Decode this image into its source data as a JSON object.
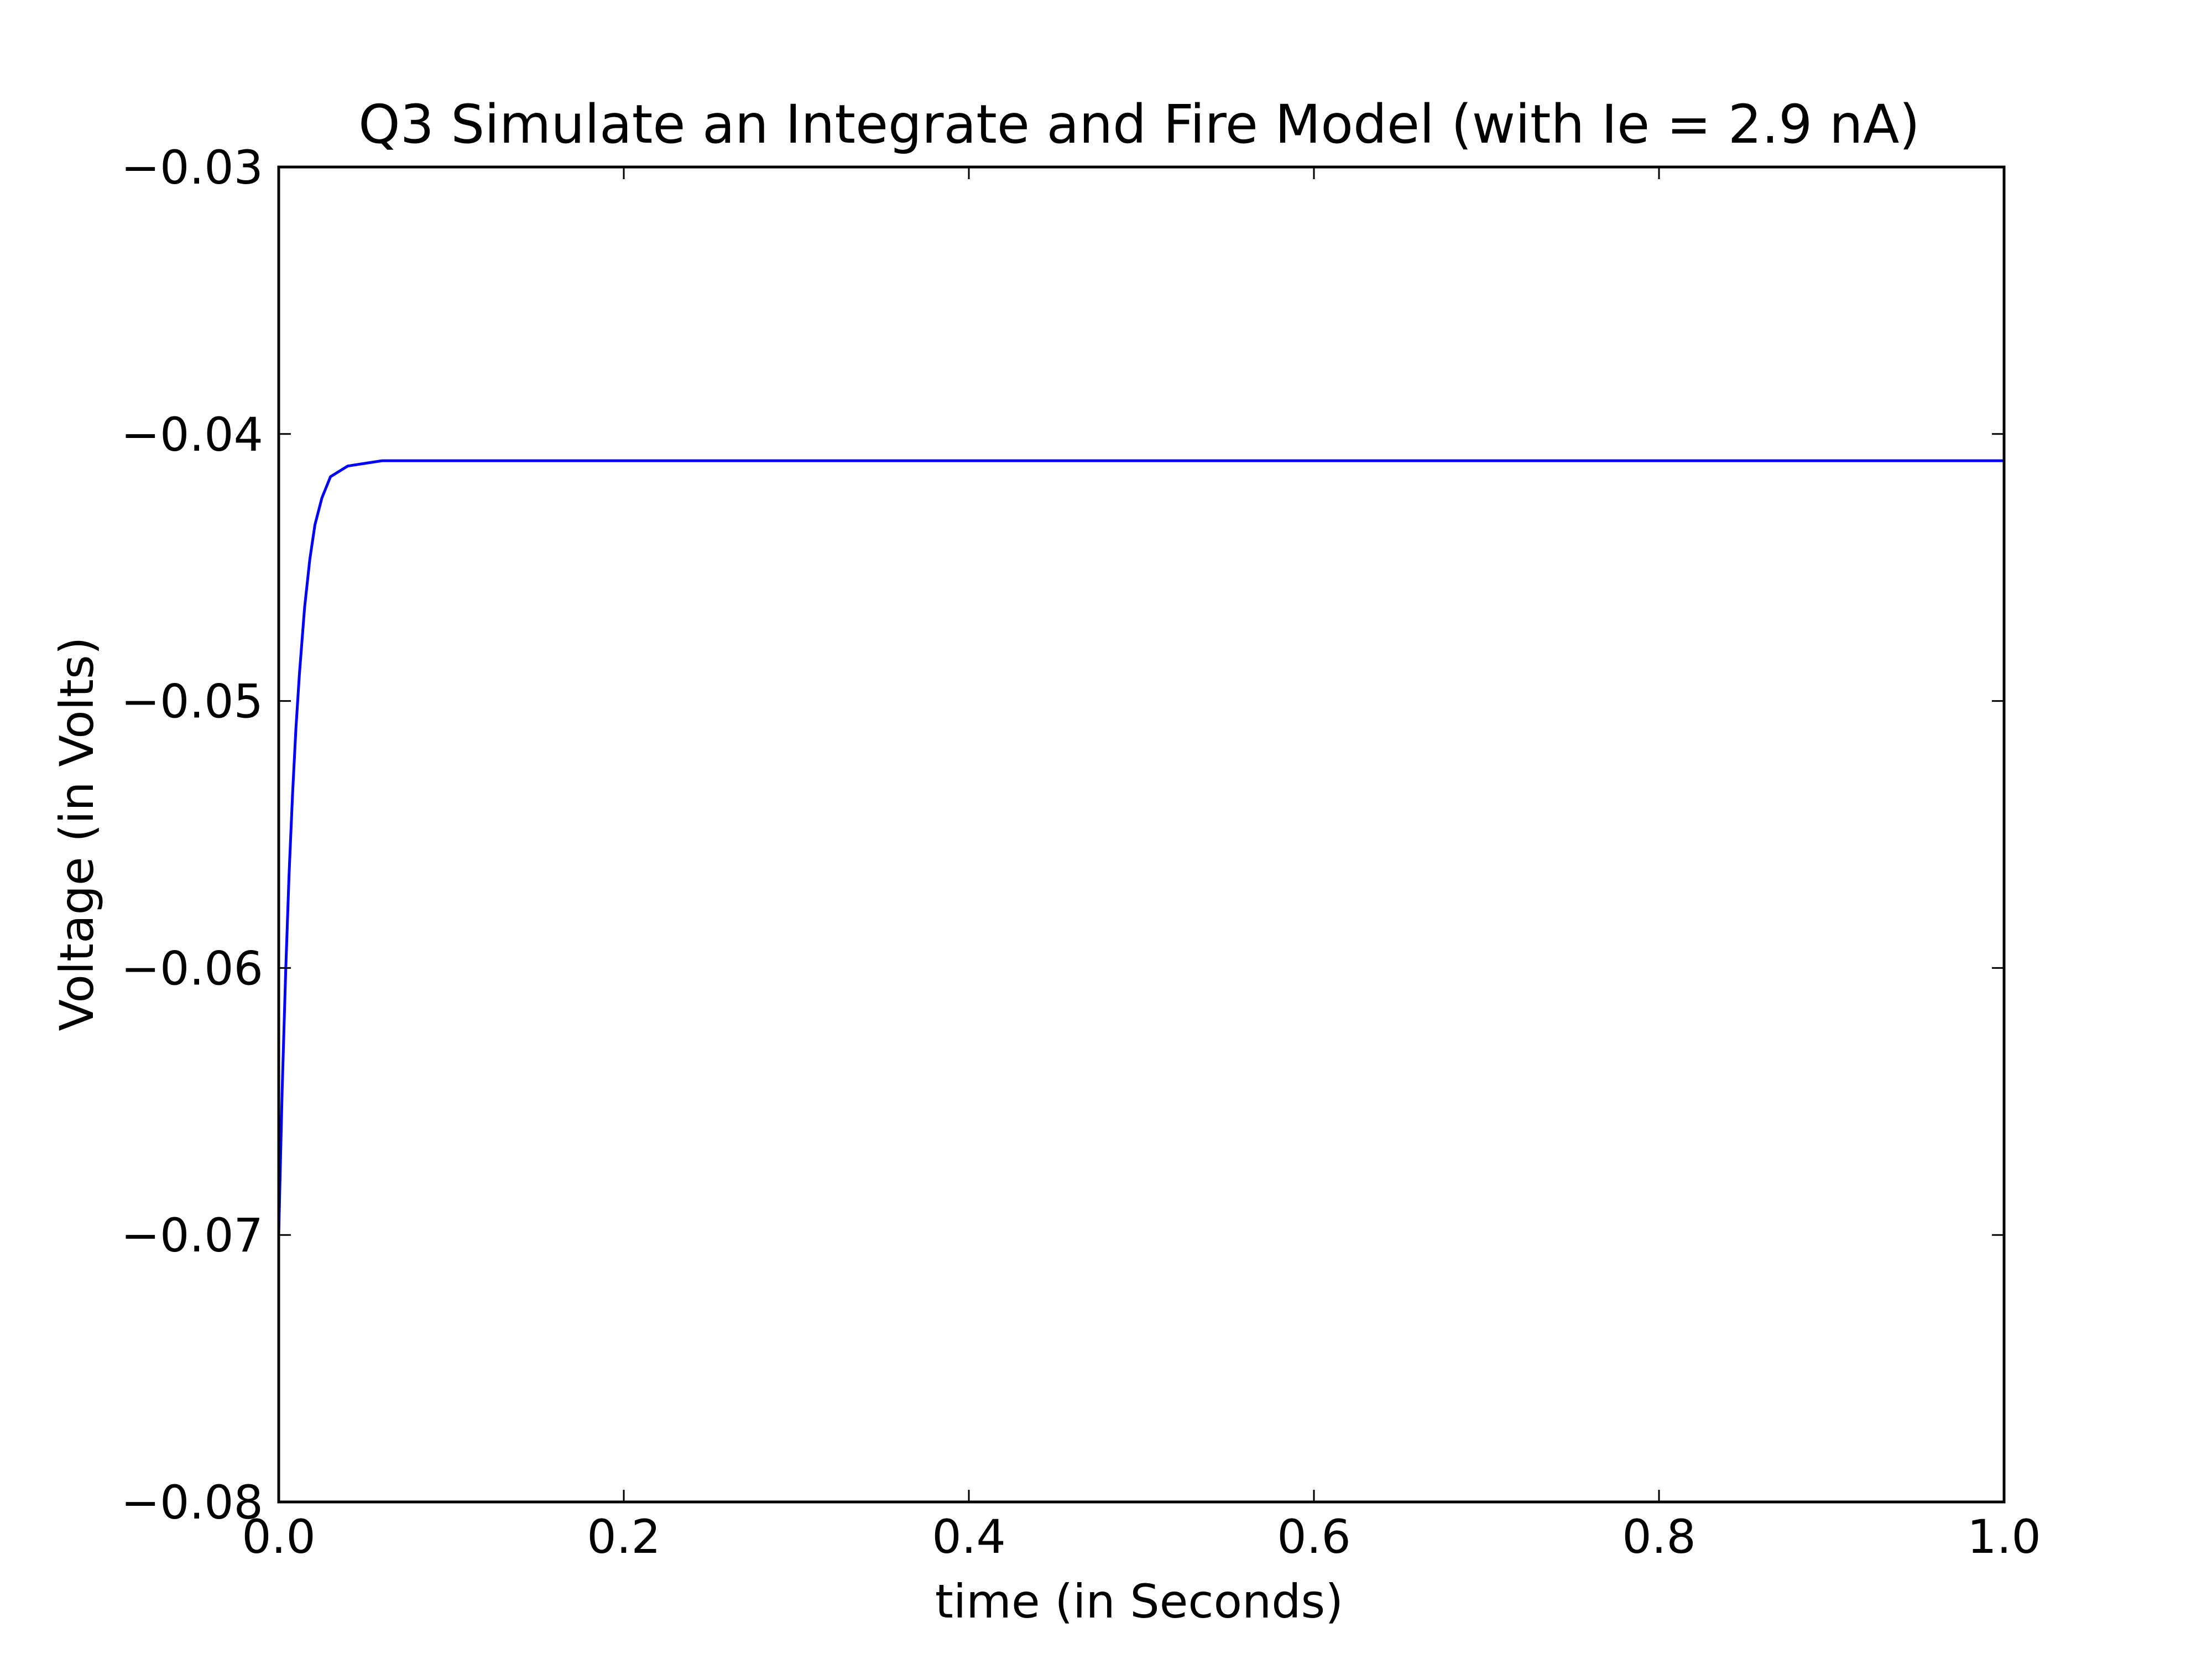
{
  "chart_data": {
    "type": "line",
    "title": "Q3 Simulate an Integrate and Fire Model (with Ie = 2.9 nA)",
    "xlabel": "time (in Seconds)",
    "ylabel": "Voltage (in Volts)",
    "xlim": [
      0.0,
      1.0
    ],
    "ylim": [
      -0.08,
      -0.03
    ],
    "xticks": [
      0.0,
      0.2,
      0.4,
      0.6,
      0.8,
      1.0
    ],
    "xtick_labels": [
      "0.0",
      "0.2",
      "0.4",
      "0.6",
      "0.8",
      "1.0"
    ],
    "yticks": [
      -0.08,
      -0.07,
      -0.06,
      -0.05,
      -0.04,
      -0.03
    ],
    "ytick_labels": [
      "−0.08",
      "−0.07",
      "−0.06",
      "−0.05",
      "−0.04",
      "−0.03"
    ],
    "grid": false,
    "legend": "none",
    "series": [
      {
        "color": "#0000ff",
        "x": [
          0.0,
          0.002,
          0.004,
          0.006,
          0.008,
          0.01,
          0.012,
          0.015,
          0.018,
          0.021,
          0.025,
          0.03,
          0.035,
          0.04,
          0.05,
          0.06,
          0.07,
          0.08,
          0.1,
          0.2,
          0.4,
          0.6,
          0.8,
          1.0
        ],
        "y": [
          -0.07,
          -0.0646,
          -0.0602,
          -0.0565,
          -0.0535,
          -0.051,
          -0.049,
          -0.0465,
          -0.0447,
          -0.0434,
          -0.0424,
          -0.0416,
          -0.0414,
          -0.0412,
          -0.0411,
          -0.041,
          -0.041,
          -0.041,
          -0.041,
          -0.041,
          -0.041,
          -0.041,
          -0.041,
          -0.041
        ]
      }
    ]
  }
}
